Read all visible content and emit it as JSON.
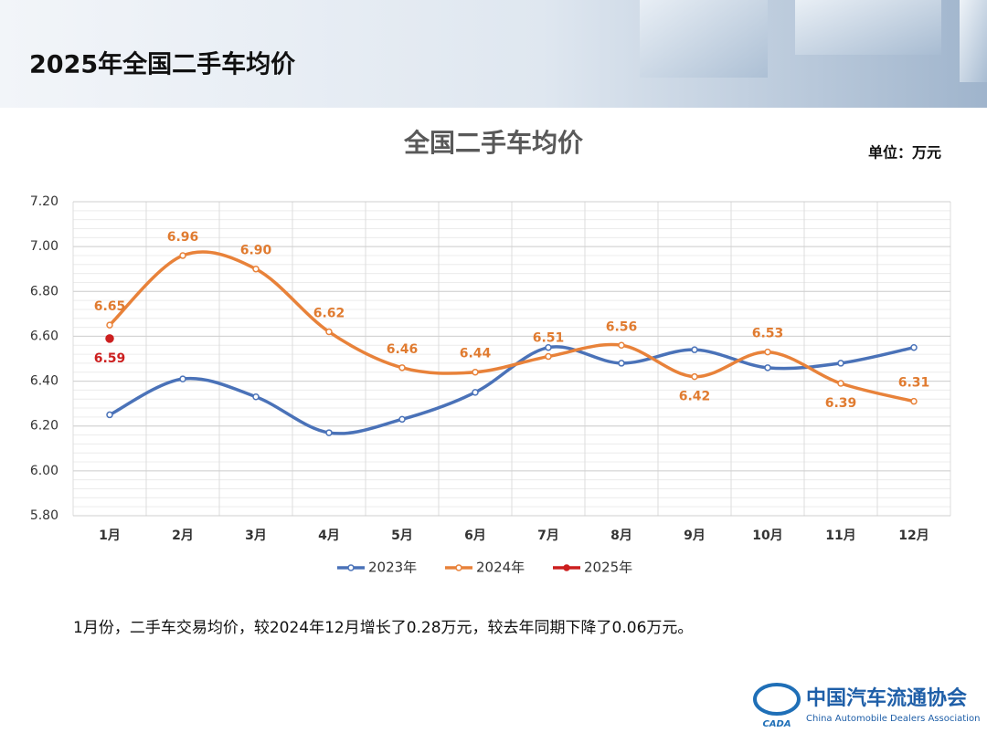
{
  "header": {
    "title": "2025年全国二手车均价"
  },
  "chart_data": {
    "type": "line",
    "title": "全国二手车均价",
    "unit": "单位：万元",
    "categories": [
      "1月",
      "2月",
      "3月",
      "4月",
      "5月",
      "6月",
      "7月",
      "8月",
      "9月",
      "10月",
      "11月",
      "12月"
    ],
    "series": [
      {
        "name": "2023年",
        "color": "#4a72b8",
        "values": [
          6.25,
          6.41,
          6.33,
          6.17,
          6.23,
          6.35,
          6.55,
          6.48,
          6.54,
          6.46,
          6.48,
          6.55
        ]
      },
      {
        "name": "2024年",
        "color": "#e8823a",
        "values": [
          6.65,
          6.96,
          6.9,
          6.62,
          6.46,
          6.44,
          6.51,
          6.56,
          6.42,
          6.53,
          6.39,
          6.31
        ],
        "value_labels": [
          "6.65",
          "6.96",
          "6.90",
          "6.62",
          "6.46",
          "6.44",
          "6.51",
          "6.56",
          "6.42",
          "6.53",
          "6.39",
          "6.31"
        ]
      },
      {
        "name": "2025年",
        "color": "#cc1f1f",
        "values": [
          6.59,
          null,
          null,
          null,
          null,
          null,
          null,
          null,
          null,
          null,
          null,
          null
        ]
      }
    ],
    "ylim": [
      5.8,
      7.2
    ],
    "yticks": [
      {
        "value": 5.8,
        "label": "5.80"
      },
      {
        "value": 6,
        "label": "6.00"
      },
      {
        "value": 6.2,
        "label": "6.20"
      },
      {
        "value": 6.4,
        "label": "6.40"
      },
      {
        "value": 6.6,
        "label": "6.60"
      },
      {
        "value": 6.8,
        "label": "6.80"
      },
      {
        "value": 7,
        "label": "7.00"
      },
      {
        "value": 7.2,
        "label": "7.20"
      }
    ],
    "grid": true,
    "smooth": true,
    "legend": "bottom"
  },
  "note": "1月份，二手车交易均价，较2024年12月增长了0.28万元，较去年同期下降了0.06万元。",
  "footer": {
    "logo": "CADA",
    "org_cn": "中国汽车流通协会",
    "org_en": "China Automobile Dealers Association"
  }
}
